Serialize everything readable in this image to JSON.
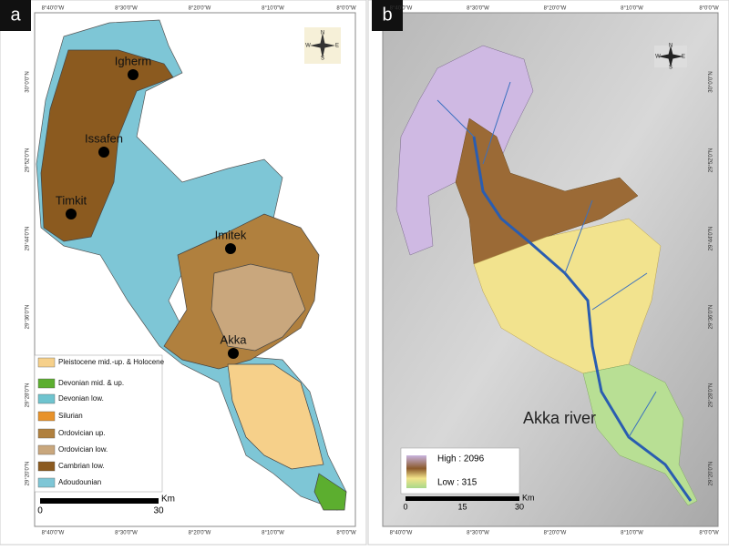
{
  "panels": [
    {
      "label": "a",
      "places": [
        "Igherm",
        "Issafen",
        "Timkit",
        "Imitek",
        "Akka"
      ],
      "legend": [
        {
          "label": "Pleistocene mid.-up. & Holocene",
          "color": "#f6d08a"
        },
        {
          "label": "Devonian mid. & up.",
          "color": "#5cae2f"
        },
        {
          "label": "Devonian low.",
          "color": "#6fc4cf"
        },
        {
          "label": "Silurian",
          "color": "#e8922a"
        },
        {
          "label": "Ordovician up.",
          "color": "#b0803e"
        },
        {
          "label": "Ordovician low.",
          "color": "#c9a77d"
        },
        {
          "label": "Cambrian low.",
          "color": "#8b5a1f"
        },
        {
          "label": "Adoudounian",
          "color": "#7ec6d6"
        }
      ],
      "scale": {
        "unit": "Km",
        "ticks": [
          "0",
          "30"
        ]
      },
      "compass": [
        "N",
        "E",
        "S",
        "W"
      ],
      "lon_labels": [
        "8°40'0\"W",
        "8°30'0\"W",
        "8°20'0\"W",
        "8°10'0\"W",
        "8°0'0\"W"
      ],
      "lat_labels": [
        "30°0'0\"N",
        "29°52'0\"N",
        "29°44'0\"N",
        "29°36'0\"N",
        "29°28'0\"N",
        "29°20'0\"N"
      ]
    },
    {
      "label": "b",
      "river": "Akka river",
      "dem_legend": {
        "high": "High : 2096",
        "low": "Low : 315"
      },
      "scale": {
        "unit": "Km",
        "ticks": [
          "0",
          "15",
          "30"
        ]
      },
      "compass": [
        "N",
        "E",
        "S",
        "W"
      ],
      "lon_labels": [
        "8°40'0\"W",
        "8°30'0\"W",
        "8°20'0\"W",
        "8°10'0\"W",
        "8°0'0\"W"
      ],
      "lat_labels": [
        "30°0'0\"N",
        "29°52'0\"N",
        "29°44'0\"N",
        "29°36'0\"N",
        "29°28'0\"N",
        "29°20'0\"N"
      ]
    }
  ]
}
